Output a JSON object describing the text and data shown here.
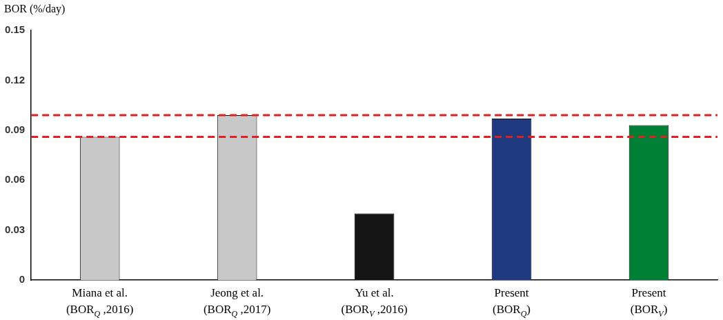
{
  "chart_data": {
    "type": "bar",
    "ylabel": "BOR (%/day)",
    "categories": [
      "Miana et al.\n(BOR$_{Q}$ ,2016)",
      "Jeong et al.\n(BOR$_{Q}$ ,2017)",
      "Yu et al.\n(BOR$_{V}$ ,2016)",
      "Present\n(BOR$_{Q}$)",
      "Present\n(BOR$_{V}$)"
    ],
    "values": [
      0.086,
      0.099,
      0.04,
      0.097,
      0.093
    ],
    "colors": [
      "#c8c8c8",
      "#c8c8c8",
      "#151515",
      "#1f3a80",
      "#008037"
    ],
    "ylim": [
      0,
      0.15
    ],
    "yticks": [
      0,
      0.03,
      0.06,
      0.09,
      0.12,
      0.15
    ],
    "ref_lines": [
      {
        "axis": "y",
        "value": 0.099,
        "color": "#e02020",
        "line_style": "dashed"
      },
      {
        "axis": "y",
        "value": 0.086,
        "color": "#e02020",
        "line_style": "dashed"
      }
    ],
    "grid": false,
    "legend": false
  }
}
